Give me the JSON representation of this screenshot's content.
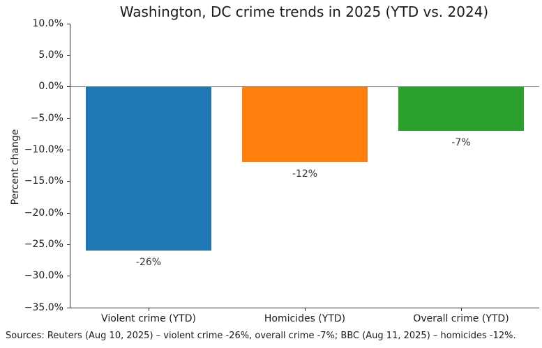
{
  "chart_data": {
    "type": "bar",
    "title": "Washington, DC crime trends in 2025 (YTD vs. 2024)",
    "xlabel": "",
    "ylabel": "Percent change",
    "categories": [
      "Violent crime (YTD)",
      "Homicides (YTD)",
      "Overall crime (YTD)"
    ],
    "values": [
      -26,
      -12,
      -7
    ],
    "bar_labels": [
      "-26%",
      "-12%",
      "-7%"
    ],
    "bar_colors": [
      "#1f77b4",
      "#ff7f0e",
      "#2ca02c"
    ],
    "ylim": [
      -35,
      10
    ],
    "ytick_values": [
      10,
      5,
      0,
      -5,
      -10,
      -15,
      -20,
      -25,
      -30,
      -35
    ],
    "ytick_labels": [
      "10.0%",
      "5.0%",
      "0.0%",
      "−5.0%",
      "−10.0%",
      "−15.0%",
      "−20.0%",
      "−25.0%",
      "−30.0%",
      "−35.0%"
    ],
    "grid": false,
    "bar_width_fraction": 0.8,
    "zero_line_color": "#808080",
    "axis_color": "#2b2b2b"
  },
  "source_note": "Sources: Reuters (Aug 10, 2025) – violent crime -26%, overall crime -7%; BBC (Aug 11, 2025) – homicides -12%."
}
